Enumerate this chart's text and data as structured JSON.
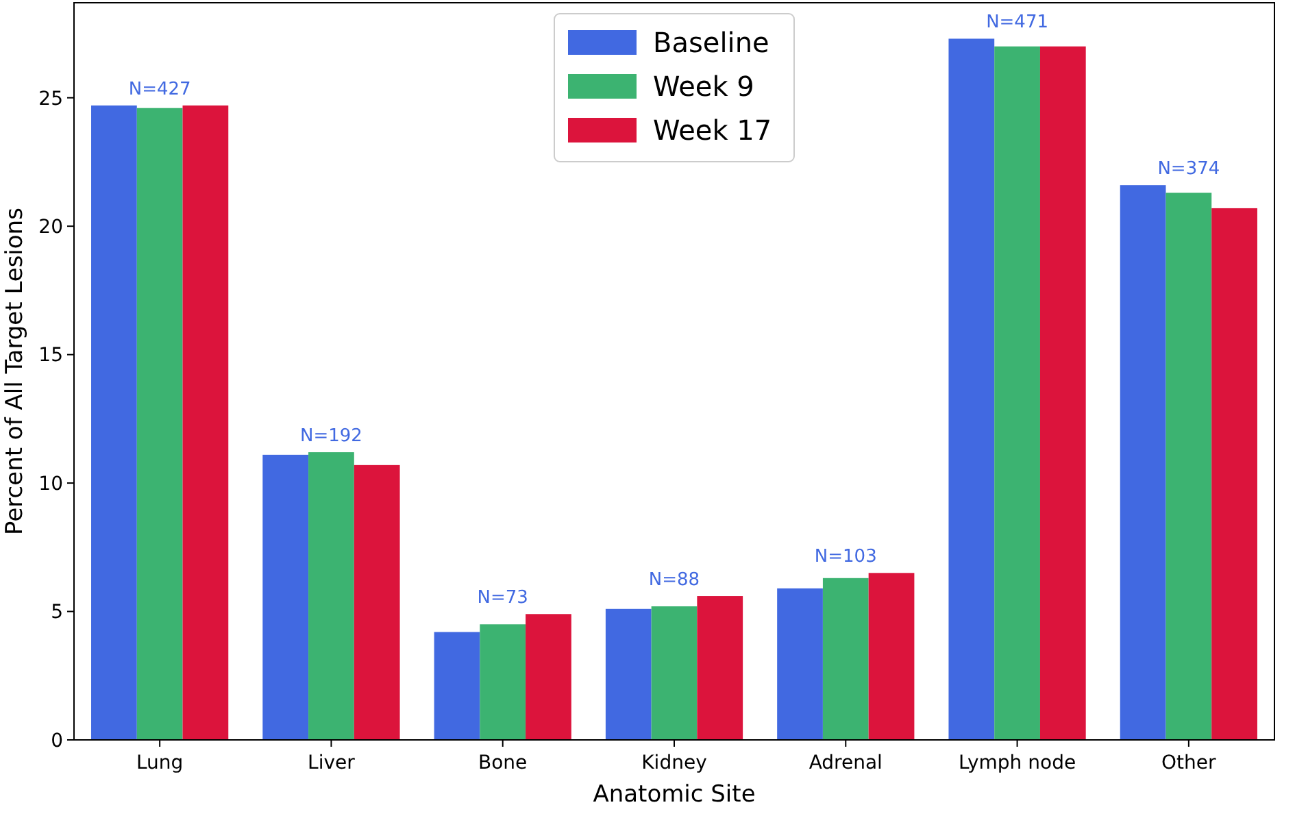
{
  "chart_data": {
    "type": "bar",
    "xlabel": "Anatomic Site",
    "ylabel": "Percent of All Target Lesions",
    "categories": [
      "Lung",
      "Liver",
      "Bone",
      "Kidney",
      "Adrenal",
      "Lymph node",
      "Other"
    ],
    "series": [
      {
        "name": "Baseline",
        "color": "#4169e1",
        "values": [
          24.7,
          11.1,
          4.2,
          5.1,
          5.9,
          27.3,
          21.6
        ]
      },
      {
        "name": "Week 9",
        "color": "#3cb371",
        "values": [
          24.6,
          11.2,
          4.5,
          5.2,
          6.3,
          27.0,
          21.3
        ]
      },
      {
        "name": "Week 17",
        "color": "#dc143c",
        "values": [
          24.7,
          10.7,
          4.9,
          5.6,
          6.5,
          27.0,
          20.7
        ]
      }
    ],
    "annotations": [
      "N=427",
      "N=192",
      "N=73",
      "N=88",
      "N=103",
      "N=471",
      "N=374"
    ],
    "ylim": [
      0,
      28.7
    ],
    "yticks": [
      0,
      5,
      10,
      15,
      20,
      25
    ],
    "legend": "top",
    "grid": false
  }
}
